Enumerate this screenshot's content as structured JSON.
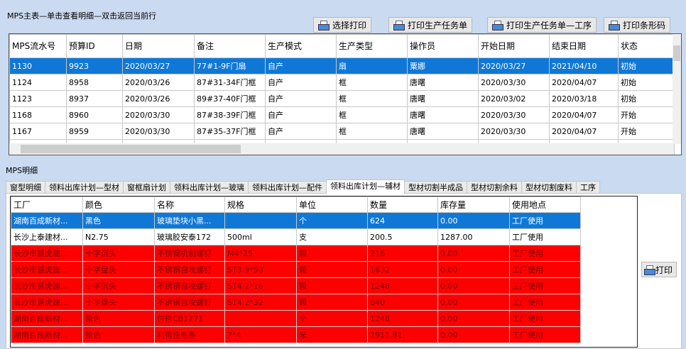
{
  "master": {
    "title": "MPS主表—单击查看明细—双击返回当前行",
    "buttons": [
      "选择打印",
      "打印生产任务单",
      "打印生产任务单—工序",
      "打印条形码"
    ],
    "columns": [
      "MPS流水号",
      "预算ID",
      "日期",
      "备注",
      "生产模式",
      "生产类型",
      "操作员",
      "开始日期",
      "结束日期",
      "状态"
    ],
    "rows": [
      [
        "1130",
        "9923",
        "2020/03/27",
        "77#1-9F门扇",
        "自产",
        "扇",
        "粟娜",
        "2020/03/27",
        "2021/04/10",
        "初始"
      ],
      [
        "1124",
        "8958",
        "2020/03/26",
        "87#31-34F门框",
        "自产",
        "框",
        "唐曙",
        "2020/03/30",
        "2020/04/07",
        "初始"
      ],
      [
        "1123",
        "8937",
        "2020/03/26",
        "89#37-40F门框",
        "自产",
        "框",
        "唐曙",
        "2020/03/02",
        "2020/03/18",
        "初始"
      ],
      [
        "1168",
        "8960",
        "2020/03/30",
        "87#38-39F门框",
        "自产",
        "框",
        "唐曙",
        "2020/03/30",
        "2020/04/07",
        "开始"
      ],
      [
        "1167",
        "8959",
        "2020/03/30",
        "87#35-37F门框",
        "自产",
        "框",
        "唐曙",
        "2020/03/30",
        "2020/04/07",
        "开始"
      ]
    ],
    "selected_row": 0
  },
  "detail": {
    "title": "MPS明细",
    "tabs": [
      "窗型明细",
      "领料出库计划—型材",
      "窗框扇计划",
      "领料出库计划—玻璃",
      "领料出库计划—配件",
      "领料出库计划—辅材",
      "型材切割半成品",
      "型材切割余料",
      "型材切割废料",
      "工序"
    ],
    "active_tab": 5,
    "columns": [
      "工厂",
      "颜色",
      "名称",
      "规格",
      "单位",
      "数量",
      "库存量",
      "使用地点"
    ],
    "rows": [
      {
        "style": "blue",
        "cells": [
          "湖南百成新材...",
          "黑色",
          "玻璃垫块小黑...",
          "",
          "个",
          "624",
          "0.00",
          "工厂使用"
        ]
      },
      {
        "style": "white",
        "cells": [
          "长沙上泰建材...",
          "N2.75",
          "玻璃胶安泰172",
          "500ml",
          "支",
          "200.5",
          "1287.00",
          "工厂使用"
        ]
      },
      {
        "style": "red",
        "cells": [
          "长沙市慧虎建...",
          "十字沉头",
          "不锈钢机制螺钉",
          "M4*25",
          "颗",
          "216",
          "0.00",
          "工厂使用"
        ]
      },
      {
        "style": "red",
        "cells": [
          "长沙市慧虎建...",
          "十字盘头",
          "不锈钢自攻螺钉",
          "ST3.9*50",
          "颗",
          "1632",
          "0.00",
          "工厂使用"
        ]
      },
      {
        "style": "red",
        "cells": [
          "长沙市慧虎建...",
          "十字沉头",
          "不锈钢自攻螺钉",
          "ST4.2*16",
          "颗",
          "1248",
          "0.00",
          "工厂使用"
        ]
      },
      {
        "style": "red",
        "cells": [
          "长沙市慧虎建...",
          "十字盘头",
          "不锈钢自攻螺钉",
          "ST4.2*32",
          "颗",
          "840",
          "0.00",
          "工厂使用"
        ]
      },
      {
        "style": "red",
        "cells": [
          "湖南百成新材...",
          "原色",
          "付档CB1771",
          "",
          "个",
          "1248",
          "0.00",
          "工厂使用"
        ]
      },
      {
        "style": "red",
        "cells": [
          "湖南百成新材...",
          "原色",
          "利得佳毛条",
          "7*4",
          "米",
          "2911.81",
          "0.00",
          "工厂使用"
        ]
      }
    ],
    "print_label": "打印"
  },
  "colors": {
    "selection": "#0f78d7",
    "shortage": "#ff0000",
    "background": "#c9daf1"
  }
}
